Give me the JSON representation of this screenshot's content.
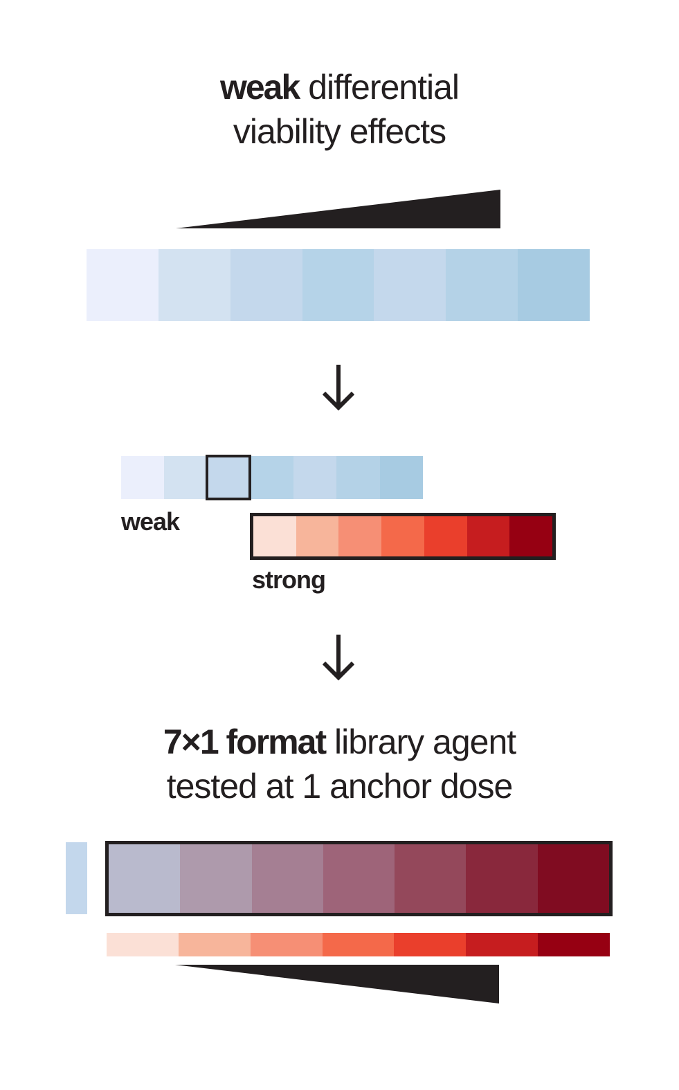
{
  "title_top": {
    "bold": "weak",
    "rest_line1": "differential",
    "line2": "viability effects"
  },
  "title_bottom": {
    "bold": "7×1 format",
    "rest_line1": "library agent",
    "line2": "tested at 1 anchor dose"
  },
  "labels": {
    "weak": "weak",
    "strong": "strong"
  },
  "icons": {
    "dose_wedge_top": "increasing-dose-wedge",
    "arrow_1": "arrow-down-icon",
    "arrow_2": "arrow-down-icon",
    "dose_wedge_bottom": "decreasing-dose-wedge"
  },
  "strips": {
    "top_blue": [
      "#ebeffc",
      "#d3e2f1",
      "#c4d8ec",
      "#b5d3e8",
      "#c4d8ec",
      "#b4d2e7",
      "#a7cbe2"
    ],
    "weak_blue": [
      "#ebeffc",
      "#d3e2f1",
      "#c4d8ec",
      "#b5d3e8",
      "#c4d8ec",
      "#b4d2e7",
      "#a7cbe2"
    ],
    "strong_red": [
      "#fbe0d6",
      "#f7b59b",
      "#f68f75",
      "#f4694a",
      "#ea3f2c",
      "#c61d1f",
      "#960012"
    ],
    "combined": [
      "#b9bacd",
      "#ae9aac",
      "#a57f93",
      "#9e6479",
      "#94485b",
      "#89283c",
      "#800c21"
    ],
    "bottom_red": [
      "#fbe0d6",
      "#f7b59b",
      "#f68f75",
      "#f4694a",
      "#ea3f2c",
      "#c61d1f",
      "#960012"
    ]
  },
  "selected_weak_index": 2,
  "anchor_swatch_color": "#c3d7ec",
  "outline_color": "#231f20"
}
